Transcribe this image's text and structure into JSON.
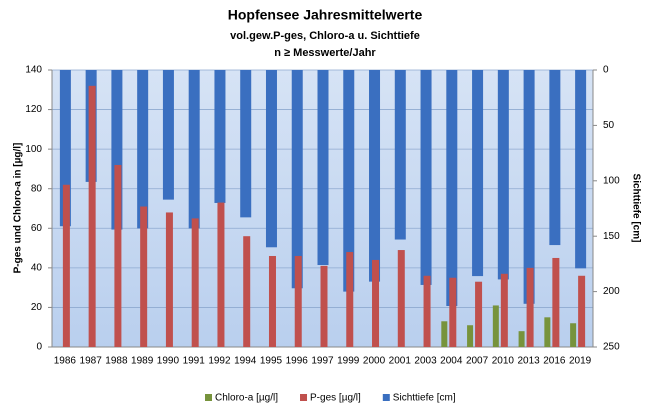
{
  "chart_data": {
    "type": "bar",
    "title": "Hopfensee Jahresmittelwerte",
    "subtitle": "vol.gew.P-ges, Chloro-a u. Sichttiefe",
    "subtitle2": "n ≥ Messwerte/Jahr",
    "ylabel": "P-ges und Chloro-a in [µg/l]",
    "y2label": "Sichttiefe [cm]",
    "categories": [
      "1986",
      "1987",
      "1988",
      "1989",
      "1990",
      "1991",
      "1992",
      "1994",
      "1995",
      "1996",
      "1997",
      "1999",
      "2000",
      "2001",
      "2003",
      "2004",
      "2007",
      "2010",
      "2013",
      "2016",
      "2019"
    ],
    "series": [
      {
        "name": "Chloro-a [µg/l]",
        "color": "#77933c",
        "values": [
          null,
          null,
          null,
          null,
          null,
          null,
          null,
          null,
          null,
          null,
          null,
          null,
          null,
          null,
          null,
          13,
          11,
          21,
          8,
          15,
          12
        ]
      },
      {
        "name": "P-ges [µg/l]",
        "color": "#c0504d",
        "values": [
          82,
          132,
          92,
          71,
          68,
          65,
          73,
          56,
          46,
          46,
          41,
          48,
          44,
          49,
          36,
          35,
          33,
          37,
          40,
          45,
          36
        ]
      },
      {
        "name": "Sichttiefe [cm]",
        "color": "#3a6fc0",
        "axis": "y2",
        "values": [
          141,
          101,
          144,
          143,
          117,
          143,
          120,
          133,
          160,
          197,
          176,
          200,
          191,
          153,
          194,
          213,
          186,
          189,
          211,
          158,
          179
        ]
      }
    ],
    "ylim": [
      0,
      140
    ],
    "yticks": [
      0,
      20,
      40,
      60,
      80,
      100,
      120,
      140
    ],
    "y2lim": [
      0,
      250
    ],
    "y2ticks": [
      0,
      50,
      100,
      150,
      200,
      250
    ],
    "y2_inverted": true,
    "grid": true,
    "legend": "bottom"
  }
}
